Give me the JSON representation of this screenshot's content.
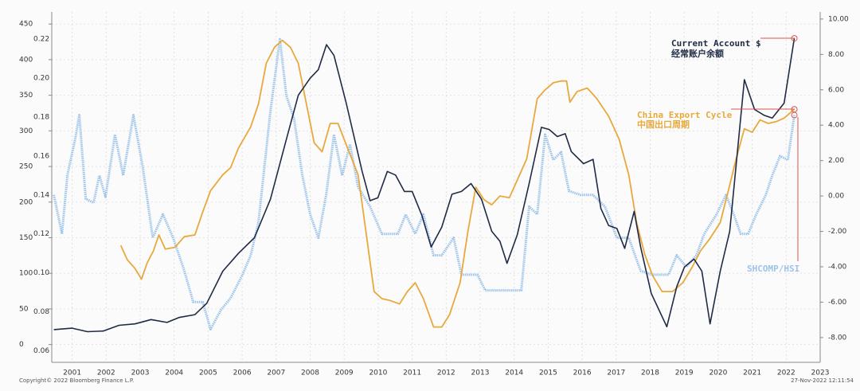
{
  "chart_data": {
    "type": "line",
    "xlim": [
      2000.4,
      2023.0
    ],
    "xticks": [
      2001,
      2002,
      2003,
      2004,
      2005,
      2006,
      2007,
      2008,
      2009,
      2010,
      2011,
      2012,
      2013,
      2014,
      2015,
      2016,
      2017,
      2018,
      2019,
      2020,
      2021,
      2022,
      2023
    ],
    "ylim": [
      -25,
      467
    ],
    "yticks": [
      0,
      50,
      100,
      150,
      200,
      250,
      300,
      350,
      400,
      450
    ],
    "y3lim": [
      0.054,
      0.234
    ],
    "y3ticks": [
      {
        "value": 0.06,
        "label": "0.06"
      },
      {
        "value": 0.08,
        "label": "0.08"
      },
      {
        "value": 0.1,
        "label": "0.10"
      },
      {
        "value": 0.12,
        "label": "0.12"
      },
      {
        "value": 0.14,
        "label": "0.14"
      },
      {
        "value": 0.16,
        "label": "0.16"
      },
      {
        "value": 0.18,
        "label": "0.18"
      },
      {
        "value": 0.2,
        "label": "0.20"
      },
      {
        "value": 0.22,
        "label": "0.22"
      }
    ],
    "y2lim": [
      -9.4,
      10.4
    ],
    "y2ticks": [
      {
        "value": -8,
        "label": "-8.00"
      },
      {
        "value": -6,
        "label": "-6.00"
      },
      {
        "value": -4,
        "label": "-4.00"
      },
      {
        "value": -2,
        "label": "-2.00"
      },
      {
        "value": 0,
        "label": "0.00"
      },
      {
        "value": 2,
        "label": "2.00"
      },
      {
        "value": 4,
        "label": "4.00"
      },
      {
        "value": 6,
        "label": "6.00"
      },
      {
        "value": 8,
        "label": "8.00"
      },
      {
        "value": 10,
        "label": "10.00"
      }
    ],
    "grid": true,
    "annotations": [
      "经常账户余额",
      "中国出口周期"
    ],
    "source": "Copyright© 2022 Bloomberg Finance L.P.",
    "timestamp": "27-Nov-2022 12:11:54",
    "series": [
      {
        "name": "Current Account $",
        "color": "#1f2a44",
        "axis": "y",
        "x": [
          2000.46,
          2001.0,
          2001.45,
          2001.91,
          2002.38,
          2002.85,
          2003.32,
          2003.79,
          2004.14,
          2004.61,
          2004.96,
          2005.43,
          2005.89,
          2006.36,
          2006.83,
          2007.3,
          2007.65,
          2008.0,
          2008.24,
          2008.48,
          2008.7,
          2009.06,
          2009.53,
          2009.76,
          2009.99,
          2010.27,
          2010.51,
          2010.77,
          2011.0,
          2011.28,
          2011.56,
          2011.87,
          2012.17,
          2012.45,
          2012.73,
          2013.04,
          2013.34,
          2013.58,
          2013.79,
          2014.09,
          2014.44,
          2014.8,
          2015.03,
          2015.27,
          2015.5,
          2015.68,
          2016.04,
          2016.32,
          2016.55,
          2016.78,
          2017.02,
          2017.25,
          2017.53,
          2017.72,
          2018.03,
          2018.49,
          2018.78,
          2019.01,
          2019.29,
          2019.52,
          2019.76,
          2020.06,
          2020.34,
          2020.77,
          2021.07,
          2021.35,
          2021.59,
          2021.94,
          2022.24
        ],
        "values": [
          21,
          23,
          18,
          19,
          27,
          29,
          35,
          31,
          38,
          42,
          58,
          103,
          128,
          150,
          204,
          288,
          350,
          374,
          386,
          421,
          406,
          339,
          243,
          202,
          206,
          243,
          238,
          215,
          215,
          182,
          137,
          165,
          211,
          215,
          226,
          204,
          159,
          145,
          114,
          154,
          226,
          305,
          302,
          292,
          296,
          271,
          254,
          260,
          191,
          167,
          163,
          135,
          187,
          137,
          72,
          25,
          81,
          109,
          120,
          103,
          29,
          103,
          159,
          372,
          330,
          322,
          318,
          339,
          430
        ]
      },
      {
        "name": "China Export Cycle",
        "color": "#e8a93c",
        "axis": "y2",
        "x": [
          2002.43,
          2002.62,
          2002.85,
          2003.04,
          2003.2,
          2003.39,
          2003.55,
          2003.74,
          2004.02,
          2004.3,
          2004.61,
          2004.84,
          2005.07,
          2005.43,
          2005.66,
          2005.89,
          2006.25,
          2006.48,
          2006.71,
          2006.95,
          2007.18,
          2007.42,
          2007.65,
          2007.89,
          2008.12,
          2008.35,
          2008.59,
          2008.82,
          2009.1,
          2009.41,
          2009.64,
          2009.88,
          2010.11,
          2010.34,
          2010.63,
          2010.86,
          2011.09,
          2011.33,
          2011.63,
          2011.87,
          2012.1,
          2012.41,
          2012.64,
          2012.87,
          2013.11,
          2013.34,
          2013.58,
          2013.86,
          2014.09,
          2014.37,
          2014.68,
          2014.91,
          2015.15,
          2015.38,
          2015.54,
          2015.64,
          2015.85,
          2016.15,
          2016.43,
          2016.78,
          2017.09,
          2017.37,
          2017.6,
          2017.84,
          2018.07,
          2018.35,
          2018.66,
          2018.96,
          2019.24,
          2019.48,
          2019.76,
          2020.06,
          2020.3,
          2020.53,
          2020.77,
          2021.0,
          2021.23,
          2021.47,
          2021.7,
          2021.94,
          2022.24
        ],
        "values": [
          -2.8,
          -3.6,
          -4.1,
          -4.7,
          -3.8,
          -3.1,
          -2.2,
          -3.0,
          -2.9,
          -2.3,
          -2.2,
          -0.9,
          0.3,
          1.2,
          1.6,
          2.7,
          3.9,
          5.2,
          7.5,
          8.4,
          8.8,
          8.4,
          7.5,
          5.2,
          3.0,
          2.5,
          4.1,
          4.1,
          2.7,
          1.2,
          -2.0,
          -5.4,
          -5.8,
          -5.9,
          -6.1,
          -5.4,
          -4.9,
          -5.8,
          -7.4,
          -7.4,
          -6.7,
          -4.9,
          -2.0,
          0.5,
          -0.2,
          -0.5,
          0.0,
          -0.1,
          0.9,
          2.1,
          5.5,
          6.0,
          6.4,
          6.5,
          6.5,
          5.3,
          5.9,
          6.1,
          5.5,
          4.5,
          3.2,
          1.2,
          -1.5,
          -3.3,
          -4.5,
          -5.4,
          -5.4,
          -4.9,
          -4.0,
          -3.1,
          -2.4,
          -1.5,
          0.3,
          2.1,
          3.8,
          3.6,
          4.3,
          4.1,
          4.2,
          4.4,
          4.9
        ]
      },
      {
        "name": "SHCOMP/HSI",
        "color": "#9cc3ea",
        "axis": "y3",
        "x": [
          2000.46,
          2000.7,
          2000.86,
          2001.09,
          2001.21,
          2001.4,
          2001.63,
          2001.8,
          2001.98,
          2002.26,
          2002.5,
          2002.8,
          2003.08,
          2003.37,
          2003.67,
          2003.97,
          2004.3,
          2004.56,
          2004.84,
          2005.07,
          2005.38,
          2005.66,
          2006.01,
          2006.25,
          2006.48,
          2006.83,
          2007.11,
          2007.3,
          2007.53,
          2007.77,
          2008.0,
          2008.24,
          2008.47,
          2008.7,
          2008.94,
          2009.17,
          2009.41,
          2009.76,
          2010.11,
          2010.58,
          2010.81,
          2011.09,
          2011.33,
          2011.63,
          2011.87,
          2012.22,
          2012.45,
          2012.92,
          2013.15,
          2013.62,
          2014.21,
          2014.44,
          2014.68,
          2014.91,
          2015.15,
          2015.38,
          2015.61,
          2015.96,
          2016.32,
          2016.67,
          2017.02,
          2017.37,
          2017.72,
          2018.07,
          2018.54,
          2018.78,
          2019.06,
          2019.36,
          2019.59,
          2019.95,
          2020.23,
          2020.46,
          2020.66,
          2020.88,
          2021.12,
          2021.4,
          2021.59,
          2021.82,
          2022.05,
          2022.24
        ],
        "values": [
          0.14,
          0.12,
          0.15,
          0.169,
          0.181,
          0.138,
          0.136,
          0.15,
          0.139,
          0.171,
          0.15,
          0.181,
          0.154,
          0.118,
          0.13,
          0.118,
          0.101,
          0.085,
          0.085,
          0.071,
          0.081,
          0.087,
          0.099,
          0.109,
          0.126,
          0.183,
          0.22,
          0.191,
          0.179,
          0.15,
          0.13,
          0.118,
          0.14,
          0.171,
          0.15,
          0.166,
          0.144,
          0.134,
          0.12,
          0.12,
          0.13,
          0.12,
          0.13,
          0.109,
          0.109,
          0.118,
          0.099,
          0.099,
          0.091,
          0.091,
          0.091,
          0.134,
          0.13,
          0.171,
          0.158,
          0.162,
          0.142,
          0.14,
          0.14,
          0.134,
          0.118,
          0.118,
          0.101,
          0.099,
          0.099,
          0.109,
          0.103,
          0.109,
          0.12,
          0.13,
          0.14,
          0.13,
          0.12,
          0.12,
          0.13,
          0.14,
          0.15,
          0.16,
          0.158,
          0.181
        ]
      }
    ]
  }
}
